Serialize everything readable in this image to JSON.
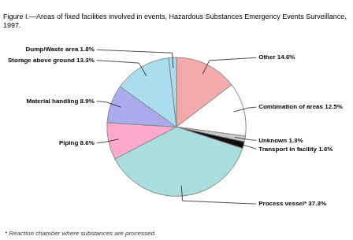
{
  "chart_data": {
    "type": "pie",
    "title": "Figure I.—Areas of fixed facilities involved in events, Hazardous Substances Emergency Events Surveillance,\n1997.",
    "annotations": [
      "* Reaction chamber where substances are processed."
    ],
    "categories": [
      "Other 14.6%",
      "Combination of areas 12.5%",
      "Unknown 1.3%",
      "Transport in facility 1.6%",
      "Process vessel* 37.3%",
      "Piping 8.6%",
      "Material handling 8.9%",
      "Storage above ground 13.3%",
      "Dump/Waste area 1.8%"
    ],
    "values": [
      14.6,
      12.5,
      1.3,
      1.6,
      37.3,
      8.6,
      8.9,
      13.3,
      1.8
    ],
    "colors": [
      "#F4AAAA",
      "#FFFFFF",
      "#CCCCCC",
      "#111111",
      "#AADDDD",
      "#FFAACC",
      "#AAAAEE",
      "#AADDEE",
      "#AADDEE"
    ],
    "legend": false
  }
}
